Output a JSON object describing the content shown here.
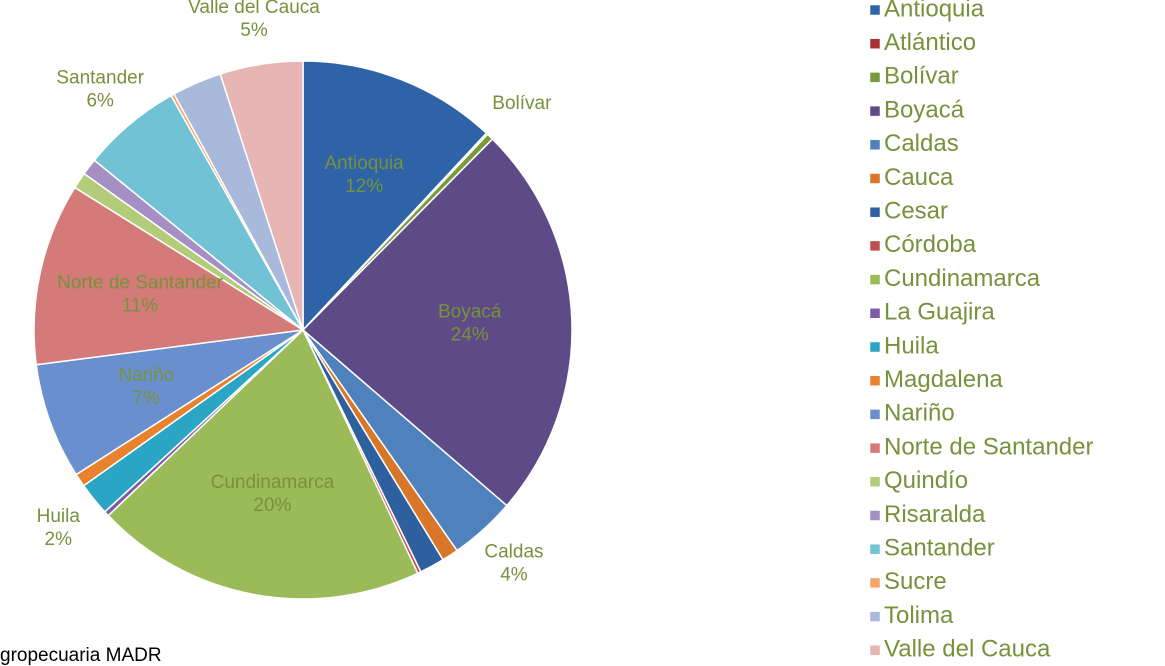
{
  "chart_data": {
    "type": "pie",
    "categories": [
      "Antioquia",
      "Atlántico",
      "Bolívar",
      "Boyacá",
      "Caldas",
      "Cauca",
      "Cesar",
      "Córdoba",
      "Cundinamarca",
      "La Guajira",
      "Huila",
      "Magdalena",
      "Nariño",
      "Norte de Santander",
      "Quindío",
      "Risaralda",
      "Santander",
      "Sucre",
      "Tolima",
      "Valle del Cauca"
    ],
    "values": [
      12,
      0.1,
      0.4,
      24,
      4,
      1,
      1.5,
      0.2,
      20,
      0.3,
      2,
      0.8,
      7,
      11,
      1,
      1,
      6,
      0.2,
      3,
      5
    ],
    "colors": [
      "#2f63a8",
      "#a83232",
      "#7a9a3a",
      "#5e4a86",
      "#4f81bd",
      "#d8762a",
      "#2e5f9e",
      "#c0504d",
      "#9bbb59",
      "#7c5ca8",
      "#2aa6c4",
      "#e8822e",
      "#6a8fcf",
      "#d47a78",
      "#b2cc7a",
      "#a58fc4",
      "#72c2d6",
      "#f4a564",
      "#a9b9dc",
      "#e6b5b4"
    ],
    "data_labels": [
      {
        "name": "Antioquia",
        "value_label": "12%"
      },
      {
        "name": "Bolívar"
      },
      {
        "name": "Boyacá",
        "value_label": "24%"
      },
      {
        "name": "Caldas",
        "value_label": "4%"
      },
      {
        "name": "Cundinamarca",
        "value_label": "20%"
      },
      {
        "name": "Huila",
        "value_label": "2%"
      },
      {
        "name": "Nariño",
        "value_label": "7%"
      },
      {
        "name": "Norte de Santander",
        "value_label": "11%"
      },
      {
        "name": "Santander",
        "value_label": "6%"
      },
      {
        "name": "Valle del Cauca",
        "value_label": "5%"
      }
    ],
    "label_color": "#76923c",
    "legend": "right",
    "source": "gropecuaria MADR"
  }
}
